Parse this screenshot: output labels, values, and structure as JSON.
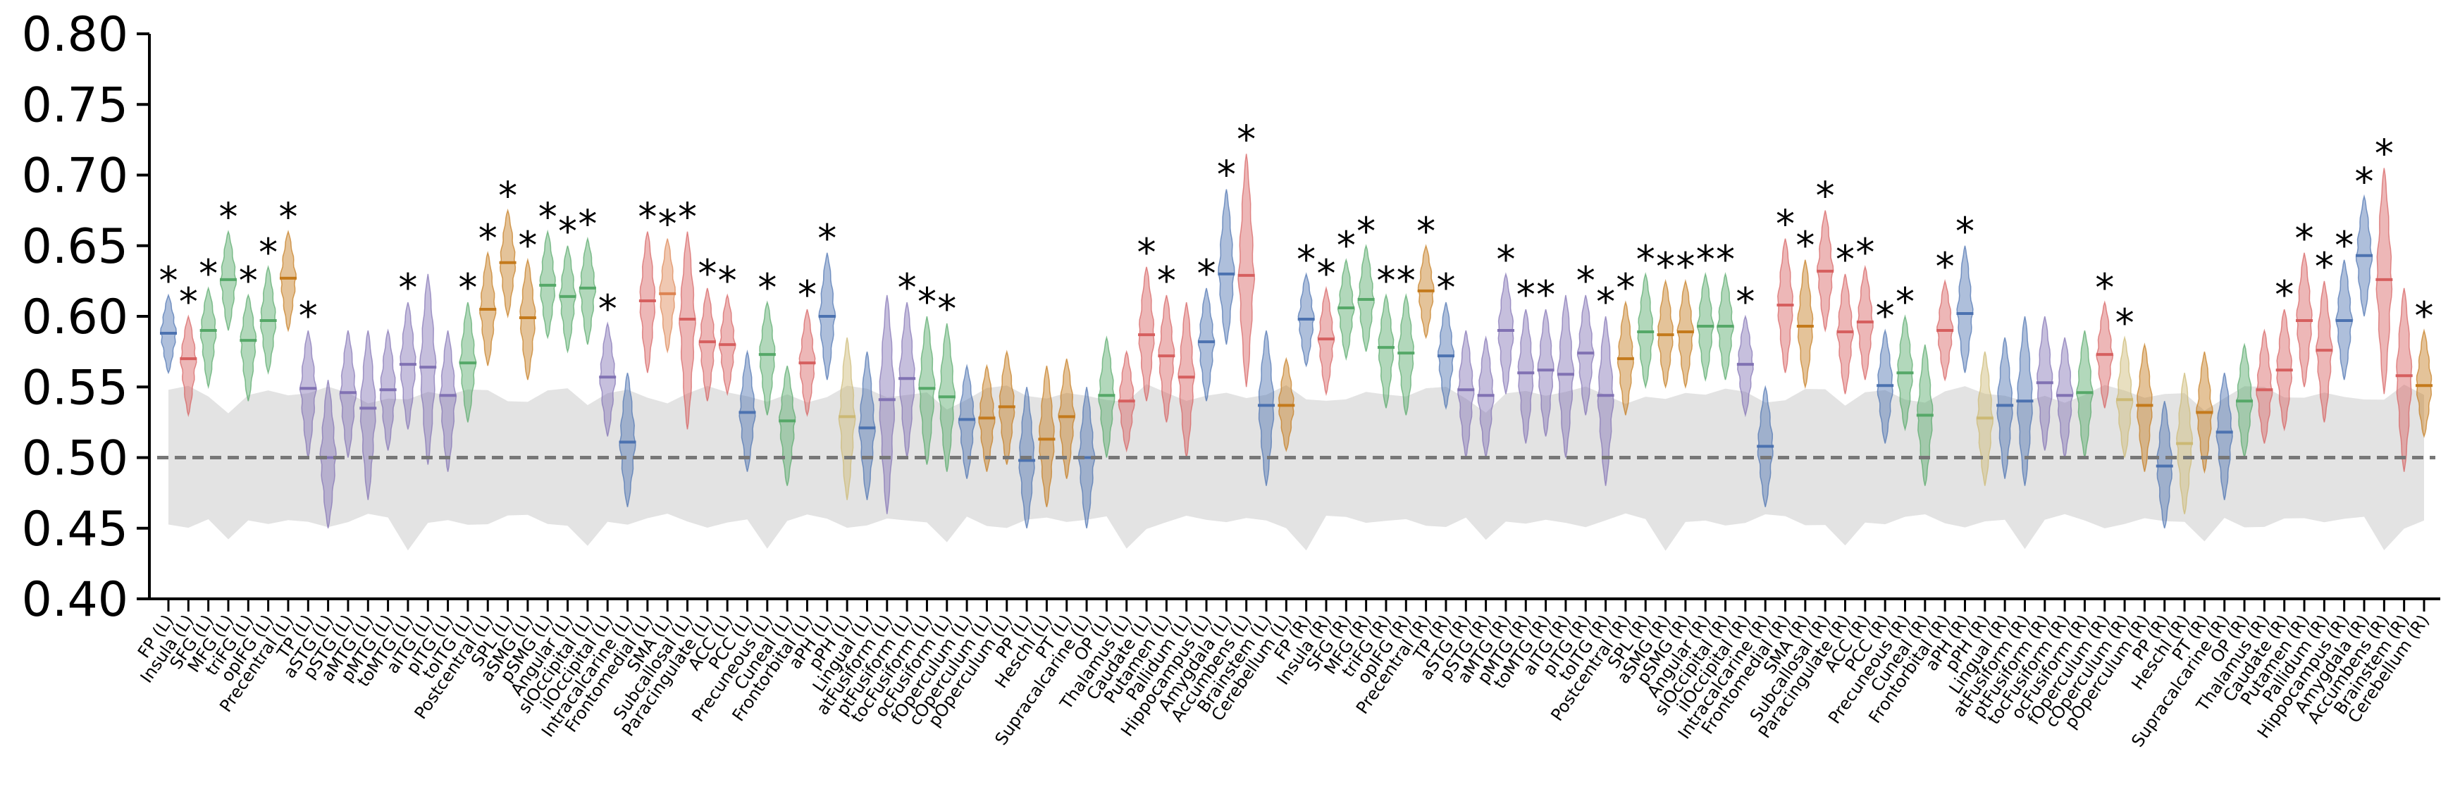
{
  "chart_data": {
    "type": "violin",
    "ylim": [
      0.4,
      0.8
    ],
    "yticks": [
      0.4,
      0.45,
      0.5,
      0.55,
      0.6,
      0.65,
      0.7,
      0.75,
      0.8
    ],
    "ytick_labels": [
      "0.40",
      "0.45",
      "0.50",
      "0.55",
      "0.60",
      "0.65",
      "0.70",
      "0.75",
      "0.80"
    ],
    "null_line": 0.5,
    "null_band": {
      "lower": 0.455,
      "upper": 0.545
    },
    "colors": {
      "blue": "#4c72b0",
      "red": "#dd8452",
      "green": "#55a868",
      "orange": "#c47a1c",
      "purple": "#8172b3",
      "yellow": "#ccb974",
      "salmon": "#d65f5f"
    },
    "significance_marker": "*",
    "categories": [
      {
        "label": "FP (L)",
        "median": 0.588,
        "low": 0.56,
        "high": 0.615,
        "color": "blue",
        "sig": true
      },
      {
        "label": "Insula (L)",
        "median": 0.57,
        "low": 0.53,
        "high": 0.6,
        "color": "salmon",
        "sig": true
      },
      {
        "label": "SFG (L)",
        "median": 0.59,
        "low": 0.55,
        "high": 0.62,
        "color": "green",
        "sig": true
      },
      {
        "label": "MFG (L)",
        "median": 0.626,
        "low": 0.59,
        "high": 0.66,
        "color": "green",
        "sig": true
      },
      {
        "label": "triFG (L)",
        "median": 0.583,
        "low": 0.54,
        "high": 0.615,
        "color": "green",
        "sig": true
      },
      {
        "label": "opIFG (L)",
        "median": 0.597,
        "low": 0.56,
        "high": 0.635,
        "color": "green",
        "sig": true
      },
      {
        "label": "Precentral (L)",
        "median": 0.627,
        "low": 0.59,
        "high": 0.66,
        "color": "orange",
        "sig": true
      },
      {
        "label": "TP (L)",
        "median": 0.549,
        "low": 0.5,
        "high": 0.59,
        "color": "purple",
        "sig": true
      },
      {
        "label": "aSTG (L)",
        "median": 0.5,
        "low": 0.45,
        "high": 0.555,
        "color": "purple",
        "sig": false
      },
      {
        "label": "pSTG (L)",
        "median": 0.546,
        "low": 0.5,
        "high": 0.59,
        "color": "purple",
        "sig": false
      },
      {
        "label": "aMTG (L)",
        "median": 0.535,
        "low": 0.47,
        "high": 0.59,
        "color": "purple",
        "sig": false
      },
      {
        "label": "pMTG (L)",
        "median": 0.548,
        "low": 0.505,
        "high": 0.59,
        "color": "purple",
        "sig": false
      },
      {
        "label": "toMTG (L)",
        "median": 0.566,
        "low": 0.52,
        "high": 0.61,
        "color": "purple",
        "sig": true
      },
      {
        "label": "aITG (L)",
        "median": 0.564,
        "low": 0.495,
        "high": 0.63,
        "color": "purple",
        "sig": false
      },
      {
        "label": "pITG (L)",
        "median": 0.544,
        "low": 0.49,
        "high": 0.59,
        "color": "purple",
        "sig": false
      },
      {
        "label": "toITG (L)",
        "median": 0.567,
        "low": 0.525,
        "high": 0.61,
        "color": "green",
        "sig": true
      },
      {
        "label": "Postcentral (L)",
        "median": 0.605,
        "low": 0.565,
        "high": 0.645,
        "color": "orange",
        "sig": true
      },
      {
        "label": "SPL (L)",
        "median": 0.638,
        "low": 0.6,
        "high": 0.675,
        "color": "orange",
        "sig": true
      },
      {
        "label": "aSMG (L)",
        "median": 0.599,
        "low": 0.555,
        "high": 0.64,
        "color": "orange",
        "sig": true
      },
      {
        "label": "pSMG (L)",
        "median": 0.622,
        "low": 0.585,
        "high": 0.66,
        "color": "green",
        "sig": true
      },
      {
        "label": "Angular (L)",
        "median": 0.614,
        "low": 0.575,
        "high": 0.65,
        "color": "green",
        "sig": true
      },
      {
        "label": "sIOccipital (L)",
        "median": 0.62,
        "low": 0.58,
        "high": 0.655,
        "color": "green",
        "sig": true
      },
      {
        "label": "iIOccipital (L)",
        "median": 0.557,
        "low": 0.515,
        "high": 0.595,
        "color": "purple",
        "sig": true
      },
      {
        "label": "Intracalcarine (L)",
        "median": 0.511,
        "low": 0.465,
        "high": 0.56,
        "color": "blue",
        "sig": false
      },
      {
        "label": "Frontomedial (L)",
        "median": 0.611,
        "low": 0.56,
        "high": 0.66,
        "color": "salmon",
        "sig": true
      },
      {
        "label": "SMA (L)",
        "median": 0.616,
        "low": 0.575,
        "high": 0.655,
        "color": "red",
        "sig": true
      },
      {
        "label": "Subcallosal (L)",
        "median": 0.598,
        "low": 0.52,
        "high": 0.66,
        "color": "salmon",
        "sig": true
      },
      {
        "label": "Paracingulate (L)",
        "median": 0.582,
        "low": 0.54,
        "high": 0.62,
        "color": "salmon",
        "sig": true
      },
      {
        "label": "ACC (L)",
        "median": 0.58,
        "low": 0.545,
        "high": 0.615,
        "color": "salmon",
        "sig": true
      },
      {
        "label": "PCC (L)",
        "median": 0.532,
        "low": 0.49,
        "high": 0.575,
        "color": "blue",
        "sig": false
      },
      {
        "label": "Precuneous (L)",
        "median": 0.573,
        "low": 0.53,
        "high": 0.61,
        "color": "green",
        "sig": true
      },
      {
        "label": "Cuneal (L)",
        "median": 0.526,
        "low": 0.48,
        "high": 0.565,
        "color": "green",
        "sig": false
      },
      {
        "label": "Frontorbital (L)",
        "median": 0.567,
        "low": 0.53,
        "high": 0.605,
        "color": "salmon",
        "sig": true
      },
      {
        "label": "aPH (L)",
        "median": 0.6,
        "low": 0.555,
        "high": 0.645,
        "color": "blue",
        "sig": true
      },
      {
        "label": "pPH (L)",
        "median": 0.529,
        "low": 0.47,
        "high": 0.585,
        "color": "yellow",
        "sig": false
      },
      {
        "label": "Lingual (L)",
        "median": 0.521,
        "low": 0.47,
        "high": 0.575,
        "color": "blue",
        "sig": false
      },
      {
        "label": "atFusiform (L)",
        "median": 0.541,
        "low": 0.46,
        "high": 0.615,
        "color": "purple",
        "sig": false
      },
      {
        "label": "ptFusiform (L)",
        "median": 0.556,
        "low": 0.5,
        "high": 0.61,
        "color": "purple",
        "sig": true
      },
      {
        "label": "tocFusiform (L)",
        "median": 0.549,
        "low": 0.495,
        "high": 0.6,
        "color": "green",
        "sig": true
      },
      {
        "label": "ocFusiform (L)",
        "median": 0.543,
        "low": 0.49,
        "high": 0.595,
        "color": "green",
        "sig": true
      },
      {
        "label": "fOperculum (L)",
        "median": 0.527,
        "low": 0.485,
        "high": 0.565,
        "color": "blue",
        "sig": false
      },
      {
        "label": "cOperculum (L)",
        "median": 0.528,
        "low": 0.49,
        "high": 0.565,
        "color": "orange",
        "sig": false
      },
      {
        "label": "pOperculum (L)",
        "median": 0.536,
        "low": 0.495,
        "high": 0.575,
        "color": "orange",
        "sig": false
      },
      {
        "label": "PP (L)",
        "median": 0.498,
        "low": 0.45,
        "high": 0.55,
        "color": "blue",
        "sig": false
      },
      {
        "label": "Heschl (L)",
        "median": 0.513,
        "low": 0.465,
        "high": 0.565,
        "color": "orange",
        "sig": false
      },
      {
        "label": "PT (L)",
        "median": 0.529,
        "low": 0.485,
        "high": 0.57,
        "color": "orange",
        "sig": false
      },
      {
        "label": "Supracalcarine (L)",
        "median": 0.5,
        "low": 0.45,
        "high": 0.55,
        "color": "blue",
        "sig": false
      },
      {
        "label": "OP (L)",
        "median": 0.544,
        "low": 0.5,
        "high": 0.585,
        "color": "green",
        "sig": false
      },
      {
        "label": "Thalamus (L)",
        "median": 0.54,
        "low": 0.505,
        "high": 0.575,
        "color": "salmon",
        "sig": false
      },
      {
        "label": "Caudate (L)",
        "median": 0.587,
        "low": 0.54,
        "high": 0.635,
        "color": "salmon",
        "sig": true
      },
      {
        "label": "Putamen (L)",
        "median": 0.572,
        "low": 0.525,
        "high": 0.615,
        "color": "salmon",
        "sig": true
      },
      {
        "label": "Pallidum (L)",
        "median": 0.557,
        "low": 0.5,
        "high": 0.61,
        "color": "salmon",
        "sig": false
      },
      {
        "label": "Hippocampus (L)",
        "median": 0.582,
        "low": 0.54,
        "high": 0.62,
        "color": "blue",
        "sig": true
      },
      {
        "label": "Amygdala (L)",
        "median": 0.63,
        "low": 0.58,
        "high": 0.69,
        "color": "blue",
        "sig": true
      },
      {
        "label": "Accumbens (L)",
        "median": 0.629,
        "low": 0.55,
        "high": 0.715,
        "color": "salmon",
        "sig": true
      },
      {
        "label": "Brainstem (L)",
        "median": 0.537,
        "low": 0.48,
        "high": 0.59,
        "color": "blue",
        "sig": false
      },
      {
        "label": "Cerebellum (L)",
        "median": 0.537,
        "low": 0.505,
        "high": 0.57,
        "color": "orange",
        "sig": false
      },
      {
        "label": "FP (R)",
        "median": 0.598,
        "low": 0.565,
        "high": 0.63,
        "color": "blue",
        "sig": true
      },
      {
        "label": "Insula (R)",
        "median": 0.584,
        "low": 0.545,
        "high": 0.62,
        "color": "salmon",
        "sig": true
      },
      {
        "label": "SFG (R)",
        "median": 0.606,
        "low": 0.57,
        "high": 0.64,
        "color": "green",
        "sig": true
      },
      {
        "label": "MFG (R)",
        "median": 0.612,
        "low": 0.575,
        "high": 0.65,
        "color": "green",
        "sig": true
      },
      {
        "label": "triFG (R)",
        "median": 0.578,
        "low": 0.535,
        "high": 0.615,
        "color": "green",
        "sig": true
      },
      {
        "label": "opIFG (R)",
        "median": 0.574,
        "low": 0.53,
        "high": 0.615,
        "color": "green",
        "sig": true
      },
      {
        "label": "Precentral (R)",
        "median": 0.618,
        "low": 0.585,
        "high": 0.65,
        "color": "orange",
        "sig": true
      },
      {
        "label": "TP (R)",
        "median": 0.572,
        "low": 0.535,
        "high": 0.61,
        "color": "blue",
        "sig": true
      },
      {
        "label": "aSTG (R)",
        "median": 0.548,
        "low": 0.5,
        "high": 0.59,
        "color": "purple",
        "sig": false
      },
      {
        "label": "pSTG (R)",
        "median": 0.544,
        "low": 0.5,
        "high": 0.585,
        "color": "purple",
        "sig": false
      },
      {
        "label": "aMTG (R)",
        "median": 0.59,
        "low": 0.545,
        "high": 0.63,
        "color": "purple",
        "sig": true
      },
      {
        "label": "pMTG (R)",
        "median": 0.56,
        "low": 0.51,
        "high": 0.605,
        "color": "purple",
        "sig": true
      },
      {
        "label": "toMTG (R)",
        "median": 0.562,
        "low": 0.515,
        "high": 0.605,
        "color": "purple",
        "sig": true
      },
      {
        "label": "aITG (R)",
        "median": 0.559,
        "low": 0.5,
        "high": 0.615,
        "color": "purple",
        "sig": false
      },
      {
        "label": "pITG (R)",
        "median": 0.574,
        "low": 0.53,
        "high": 0.615,
        "color": "purple",
        "sig": true
      },
      {
        "label": "toITG (R)",
        "median": 0.544,
        "low": 0.48,
        "high": 0.6,
        "color": "purple",
        "sig": true
      },
      {
        "label": "Postcentral (R)",
        "median": 0.57,
        "low": 0.53,
        "high": 0.61,
        "color": "orange",
        "sig": true
      },
      {
        "label": "SPL (R)",
        "median": 0.589,
        "low": 0.55,
        "high": 0.63,
        "color": "green",
        "sig": true
      },
      {
        "label": "aSMG (R)",
        "median": 0.587,
        "low": 0.55,
        "high": 0.625,
        "color": "orange",
        "sig": true
      },
      {
        "label": "pSMG (R)",
        "median": 0.589,
        "low": 0.55,
        "high": 0.625,
        "color": "orange",
        "sig": true
      },
      {
        "label": "Angular (R)",
        "median": 0.593,
        "low": 0.555,
        "high": 0.63,
        "color": "green",
        "sig": true
      },
      {
        "label": "sIOccipital (R)",
        "median": 0.593,
        "low": 0.555,
        "high": 0.63,
        "color": "green",
        "sig": true
      },
      {
        "label": "iIOccipital (R)",
        "median": 0.566,
        "low": 0.53,
        "high": 0.6,
        "color": "purple",
        "sig": true
      },
      {
        "label": "Intracalcarine (R)",
        "median": 0.508,
        "low": 0.465,
        "high": 0.55,
        "color": "blue",
        "sig": false
      },
      {
        "label": "Frontomedial (R)",
        "median": 0.608,
        "low": 0.56,
        "high": 0.655,
        "color": "salmon",
        "sig": true
      },
      {
        "label": "SMA (R)",
        "median": 0.593,
        "low": 0.55,
        "high": 0.64,
        "color": "orange",
        "sig": true
      },
      {
        "label": "Subcallosal (R)",
        "median": 0.632,
        "low": 0.59,
        "high": 0.675,
        "color": "salmon",
        "sig": true
      },
      {
        "label": "Paracingulate (R)",
        "median": 0.589,
        "low": 0.545,
        "high": 0.63,
        "color": "salmon",
        "sig": true
      },
      {
        "label": "ACC (R)",
        "median": 0.596,
        "low": 0.555,
        "high": 0.635,
        "color": "salmon",
        "sig": true
      },
      {
        "label": "PCC (R)",
        "median": 0.551,
        "low": 0.51,
        "high": 0.59,
        "color": "blue",
        "sig": true
      },
      {
        "label": "Precuneous (R)",
        "median": 0.56,
        "low": 0.52,
        "high": 0.6,
        "color": "green",
        "sig": true
      },
      {
        "label": "Cuneal (R)",
        "median": 0.53,
        "low": 0.48,
        "high": 0.58,
        "color": "green",
        "sig": false
      },
      {
        "label": "Frontorbital (R)",
        "median": 0.59,
        "low": 0.555,
        "high": 0.625,
        "color": "salmon",
        "sig": true
      },
      {
        "label": "aPH (R)",
        "median": 0.602,
        "low": 0.56,
        "high": 0.65,
        "color": "blue",
        "sig": true
      },
      {
        "label": "pPH (R)",
        "median": 0.528,
        "low": 0.48,
        "high": 0.575,
        "color": "yellow",
        "sig": false
      },
      {
        "label": "Lingual (R)",
        "median": 0.537,
        "low": 0.485,
        "high": 0.585,
        "color": "blue",
        "sig": false
      },
      {
        "label": "atFusiform (R)",
        "median": 0.54,
        "low": 0.48,
        "high": 0.6,
        "color": "blue",
        "sig": false
      },
      {
        "label": "ptFusiform (R)",
        "median": 0.553,
        "low": 0.505,
        "high": 0.6,
        "color": "purple",
        "sig": false
      },
      {
        "label": "tocFusiform (R)",
        "median": 0.544,
        "low": 0.5,
        "high": 0.585,
        "color": "purple",
        "sig": false
      },
      {
        "label": "ocFusiform (R)",
        "median": 0.546,
        "low": 0.5,
        "high": 0.59,
        "color": "green",
        "sig": false
      },
      {
        "label": "fOperculum (R)",
        "median": 0.573,
        "low": 0.535,
        "high": 0.61,
        "color": "salmon",
        "sig": true
      },
      {
        "label": "cOperculum (R)",
        "median": 0.541,
        "low": 0.5,
        "high": 0.585,
        "color": "yellow",
        "sig": true
      },
      {
        "label": "pOperculum (R)",
        "median": 0.537,
        "low": 0.49,
        "high": 0.58,
        "color": "orange",
        "sig": false
      },
      {
        "label": "PP (R)",
        "median": 0.494,
        "low": 0.45,
        "high": 0.54,
        "color": "blue",
        "sig": false
      },
      {
        "label": "Heschl (R)",
        "median": 0.51,
        "low": 0.46,
        "high": 0.56,
        "color": "yellow",
        "sig": false
      },
      {
        "label": "PT (R)",
        "median": 0.532,
        "low": 0.49,
        "high": 0.575,
        "color": "orange",
        "sig": false
      },
      {
        "label": "Supracalcarine (R)",
        "median": 0.518,
        "low": 0.47,
        "high": 0.56,
        "color": "blue",
        "sig": false
      },
      {
        "label": "OP (R)",
        "median": 0.54,
        "low": 0.5,
        "high": 0.58,
        "color": "green",
        "sig": false
      },
      {
        "label": "Thalamus (R)",
        "median": 0.548,
        "low": 0.51,
        "high": 0.59,
        "color": "salmon",
        "sig": false
      },
      {
        "label": "Caudate (R)",
        "median": 0.562,
        "low": 0.52,
        "high": 0.605,
        "color": "salmon",
        "sig": true
      },
      {
        "label": "Putamen (R)",
        "median": 0.597,
        "low": 0.55,
        "high": 0.645,
        "color": "salmon",
        "sig": true
      },
      {
        "label": "Pallidum (R)",
        "median": 0.576,
        "low": 0.525,
        "high": 0.625,
        "color": "salmon",
        "sig": true
      },
      {
        "label": "Hippocampus (R)",
        "median": 0.597,
        "low": 0.555,
        "high": 0.64,
        "color": "blue",
        "sig": true
      },
      {
        "label": "Amygdala (R)",
        "median": 0.643,
        "low": 0.6,
        "high": 0.685,
        "color": "blue",
        "sig": true
      },
      {
        "label": "Accumbens (R)",
        "median": 0.626,
        "low": 0.545,
        "high": 0.705,
        "color": "salmon",
        "sig": true
      },
      {
        "label": "Brainstem (R)",
        "median": 0.558,
        "low": 0.49,
        "high": 0.62,
        "color": "salmon",
        "sig": false
      },
      {
        "label": "Cerebellum (R)",
        "median": 0.551,
        "low": 0.515,
        "high": 0.59,
        "color": "orange",
        "sig": true
      }
    ]
  }
}
